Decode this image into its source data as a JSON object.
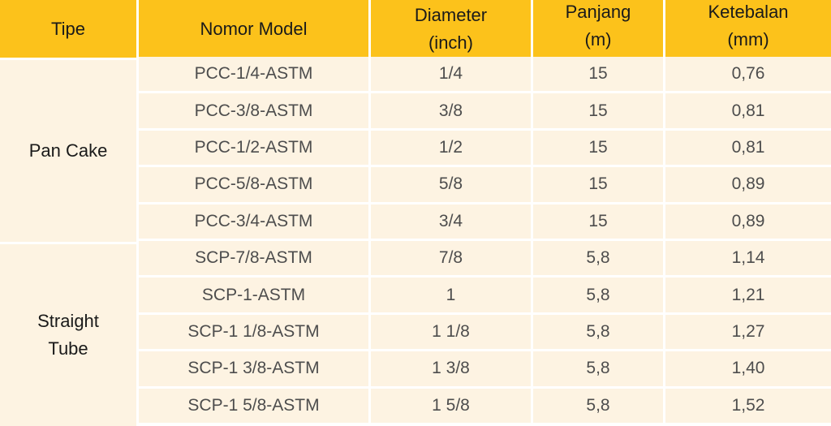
{
  "headers": {
    "type": "Tipe",
    "model": "Nomor Model",
    "diameter": [
      "Diameter",
      "(inch)"
    ],
    "length": [
      "Panjang",
      "(m)"
    ],
    "thickness": [
      "Ketebalan",
      "(mm)"
    ]
  },
  "groups": [
    {
      "type": "Pan Cake",
      "rows": [
        {
          "model": "PCC-1/4-ASTM",
          "diameter": "1/4",
          "length": "15",
          "thickness": "0,76"
        },
        {
          "model": "PCC-3/8-ASTM",
          "diameter": "3/8",
          "length": "15",
          "thickness": "0,81"
        },
        {
          "model": "PCC-1/2-ASTM",
          "diameter": "1/2",
          "length": "15",
          "thickness": "0,81"
        },
        {
          "model": "PCC-5/8-ASTM",
          "diameter": "5/8",
          "length": "15",
          "thickness": "0,89"
        },
        {
          "model": "PCC-3/4-ASTM",
          "diameter": "3/4",
          "length": "15",
          "thickness": "0,89"
        }
      ]
    },
    {
      "type": [
        "Straight",
        "Tube"
      ],
      "rows": [
        {
          "model": "SCP-7/8-ASTM",
          "diameter": "7/8",
          "length": "5,8",
          "thickness": "1,14"
        },
        {
          "model": "SCP-1-ASTM",
          "diameter": "1",
          "length": "5,8",
          "thickness": "1,21"
        },
        {
          "model": "SCP-1 1/8-ASTM",
          "diameter": "1 1/8",
          "length": "5,8",
          "thickness": "1,27"
        },
        {
          "model": "SCP-1 3/8-ASTM",
          "diameter": "1 3/8",
          "length": "5,8",
          "thickness": "1,40"
        },
        {
          "model": "SCP-1 5/8-ASTM",
          "diameter": "1 5/8",
          "length": "5,8",
          "thickness": "1,52"
        }
      ]
    }
  ],
  "colors": {
    "header_bg": "#fcc21b",
    "cell_bg": "#fdf3e2",
    "header_text": "#1a1a1a",
    "cell_text": "#4d4d4d"
  }
}
